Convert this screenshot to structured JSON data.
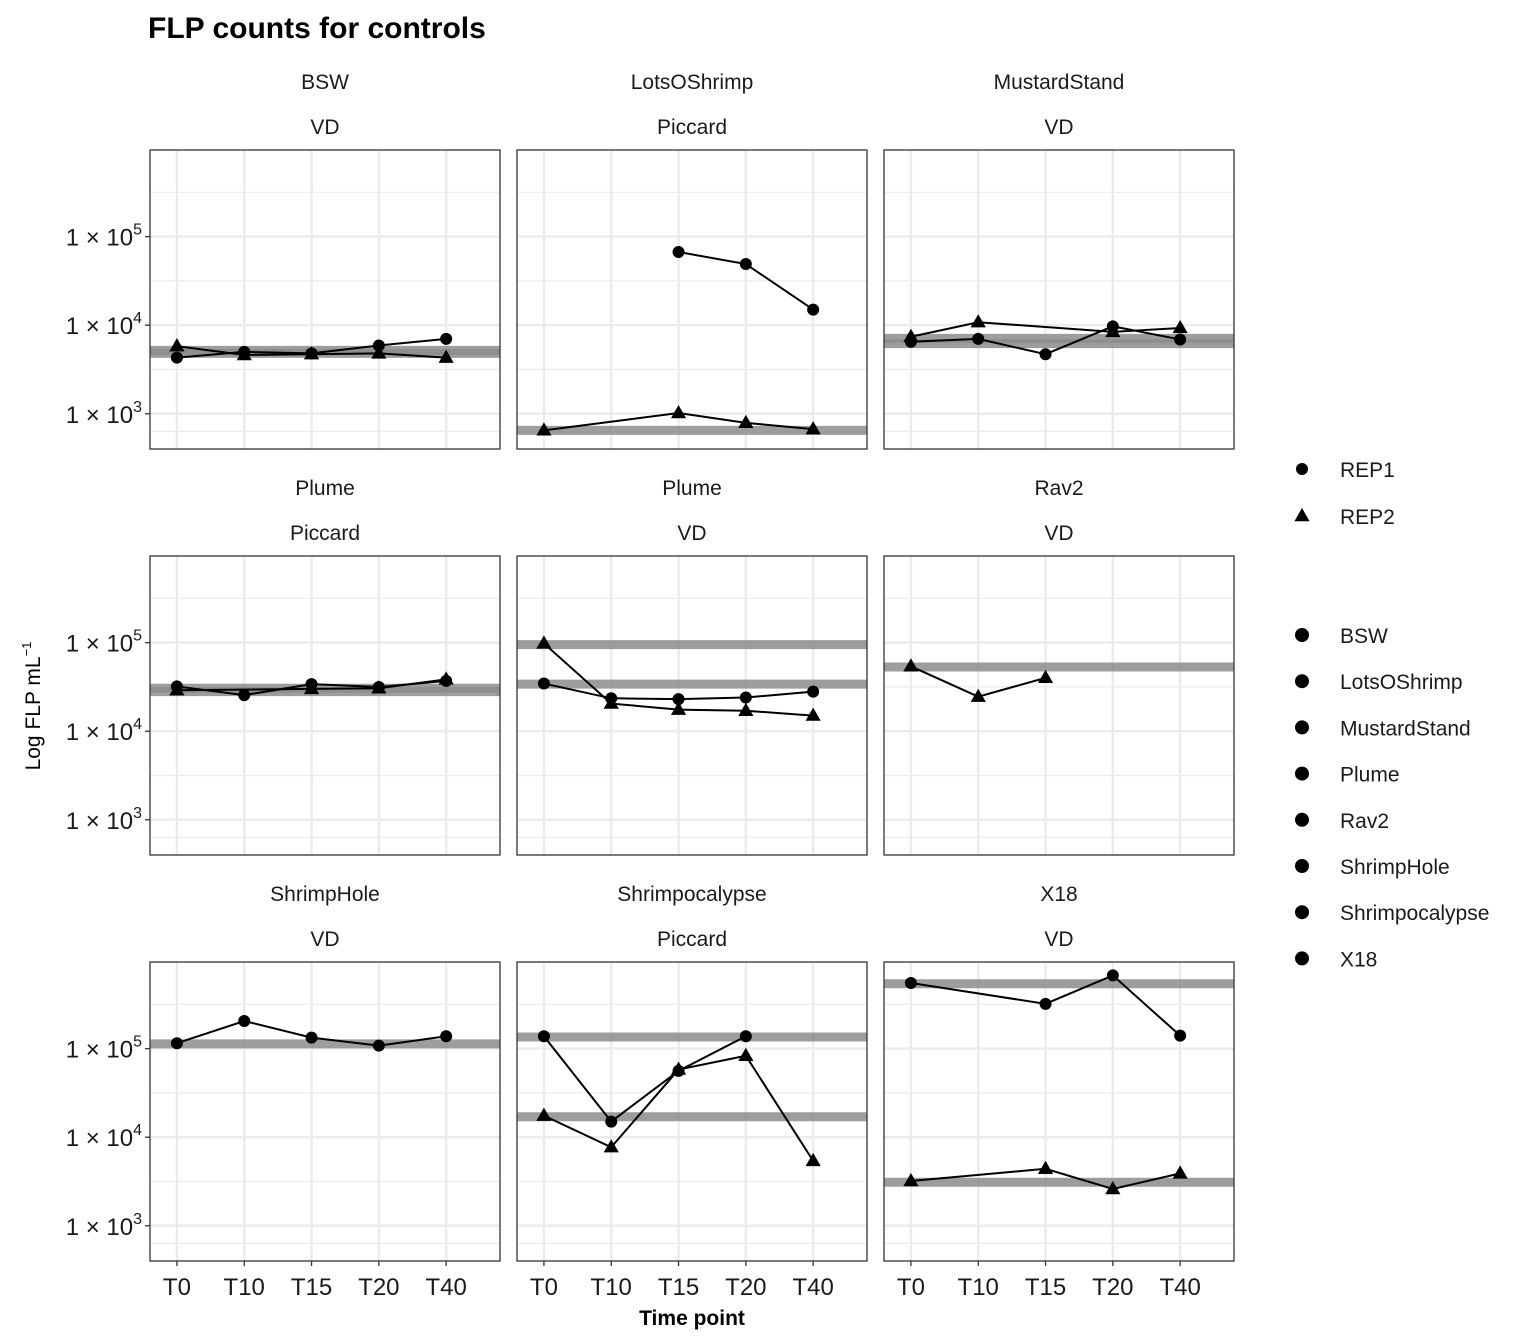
{
  "chart_data": {
    "type": "line",
    "title": "FLP counts for controls",
    "xlabel": "Time point",
    "ylabel_parts": [
      "Log FLP  mL",
      "−1"
    ],
    "y_scale": "log10",
    "ylim": [
      400,
      950000
    ],
    "y_ticks": [
      {
        "value": 1000,
        "mant": "1 × 10",
        "exp": "3"
      },
      {
        "value": 10000,
        "mant": "1 × 10",
        "exp": "4"
      },
      {
        "value": 100000,
        "mant": "1 × 10",
        "exp": "5"
      }
    ],
    "categories": [
      "T0",
      "T10",
      "T15",
      "T20",
      "T40"
    ],
    "grid": true,
    "legend": {
      "placement": "right",
      "replicate_keys": [
        {
          "label": "REP1",
          "shape": "circle"
        },
        {
          "label": "REP2",
          "shape": "triangle"
        }
      ],
      "site_keys": [
        "BSW",
        "LotsOShrimp",
        "MustardStand",
        "Plume",
        "Rav2",
        "ShrimpHole",
        "Shrimpocalypse",
        "X18"
      ]
    },
    "colors": {
      "mean_band": "#8c8c8c",
      "line": "#000000",
      "grid": "#ebebeb",
      "panel_border": "#333333"
    },
    "panels": [
      {
        "site": "BSW",
        "source": "VD",
        "series": [
          {
            "name": "REP1",
            "shape": "circle",
            "values": [
              4300,
              5000,
              4800,
              5900,
              7000
            ]
          },
          {
            "name": "REP2",
            "shape": "triangle",
            "values": [
              5800,
              4600,
              4700,
              4800,
              4300
            ]
          }
        ],
        "mean_bands": [
          4800,
          5200
        ]
      },
      {
        "site": "LotsOShrimp",
        "source": "Piccard",
        "series": [
          {
            "name": "REP1",
            "shape": "circle",
            "values": [
              null,
              null,
              67000,
              49000,
              15000
            ]
          },
          {
            "name": "REP2",
            "shape": "triangle",
            "values": [
              650,
              null,
              1020,
              790,
              670
            ]
          }
        ],
        "mean_bands": [
          650
        ]
      },
      {
        "site": "MustardStand",
        "source": "VD",
        "series": [
          {
            "name": "REP1",
            "shape": "circle",
            "values": [
              6500,
              7000,
              4700,
              9700,
              6900
            ]
          },
          {
            "name": "REP2",
            "shape": "triangle",
            "values": [
              7400,
              10800,
              null,
              8400,
              9300
            ]
          }
        ],
        "mean_bands": [
          6200,
          7100
        ]
      },
      {
        "site": "Plume",
        "source": "Piccard",
        "series": [
          {
            "name": "REP1",
            "shape": "circle",
            "values": [
              32000,
              25500,
              34000,
              31500,
              37000
            ]
          },
          {
            "name": "REP2",
            "shape": "triangle",
            "values": [
              29000,
              null,
              30000,
              30500,
              38500
            ]
          }
        ],
        "mean_bands": [
          28000,
          30500
        ]
      },
      {
        "site": "Plume",
        "source": "VD",
        "series": [
          {
            "name": "REP1",
            "shape": "circle",
            "values": [
              34500,
              23500,
              23000,
              24000,
              28000
            ]
          },
          {
            "name": "REP2",
            "shape": "triangle",
            "values": [
              98000,
              20500,
              17500,
              17000,
              15000
            ]
          }
        ],
        "mean_bands": [
          34000,
          95000
        ]
      },
      {
        "site": "Rav2",
        "source": "VD",
        "series": [
          {
            "name": "REP1",
            "shape": "circle",
            "values": [
              null,
              null,
              null,
              null,
              null
            ]
          },
          {
            "name": "REP2",
            "shape": "triangle",
            "values": [
              54000,
              24500,
              40000,
              null,
              null
            ]
          }
        ],
        "mean_bands": [
          53000
        ]
      },
      {
        "site": "ShrimpHole",
        "source": "VD",
        "series": [
          {
            "name": "REP1",
            "shape": "circle",
            "values": [
              115000,
              205000,
              133000,
              108000,
              138000
            ]
          },
          {
            "name": "REP2",
            "shape": "triangle",
            "values": [
              null,
              null,
              null,
              null,
              null
            ]
          }
        ],
        "mean_bands": [
          113000
        ]
      },
      {
        "site": "Shrimpocalypse",
        "source": "Piccard",
        "series": [
          {
            "name": "REP1",
            "shape": "circle",
            "values": [
              138000,
              15000,
              56000,
              138000,
              null
            ]
          },
          {
            "name": "REP2",
            "shape": "triangle",
            "values": [
              17500,
              7700,
              58000,
              83000,
              5400
            ]
          }
        ],
        "mean_bands": [
          135000,
          17000
        ]
      },
      {
        "site": "X18",
        "source": "VD",
        "series": [
          {
            "name": "REP1",
            "shape": "circle",
            "values": [
              550000,
              null,
              320000,
              670000,
              140000
            ]
          },
          {
            "name": "REP2",
            "shape": "triangle",
            "values": [
              3200,
              null,
              4400,
              2600,
              3900
            ]
          }
        ],
        "mean_bands": [
          540000,
          3100
        ]
      }
    ]
  }
}
